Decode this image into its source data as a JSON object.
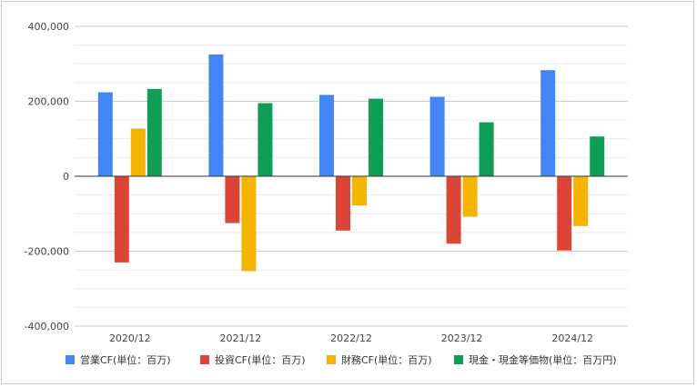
{
  "chart_data": {
    "type": "bar",
    "categories": [
      "2020/12",
      "2021/12",
      "2022/12",
      "2023/12",
      "2024/12"
    ],
    "series": [
      {
        "name": "営業CF(単位：百万)",
        "color": "#4285f4",
        "values": [
          224000,
          325000,
          217000,
          212000,
          283000
        ]
      },
      {
        "name": "投資CF(単位：百万)",
        "color": "#db4437",
        "values": [
          -230000,
          -125000,
          -145000,
          -180000,
          -198000
        ]
      },
      {
        "name": "財務CF(単位：百万)",
        "color": "#f4b400",
        "values": [
          127000,
          -253000,
          -78000,
          -108000,
          -133000
        ]
      },
      {
        "name": "現金・現金等価物(単位：百万円)",
        "color": "#0f9d58",
        "values": [
          233000,
          195000,
          207000,
          144000,
          106000
        ]
      }
    ],
    "ylim": [
      -400000,
      400000
    ],
    "yticks": [
      "400,000",
      "200,000",
      "0",
      "-200,000",
      "-400,000"
    ],
    "ytick_values": [
      400000,
      200000,
      0,
      -200000,
      -400000
    ],
    "grid": true,
    "legend_position": "bottom",
    "title": "",
    "xlabel": "",
    "ylabel": ""
  }
}
